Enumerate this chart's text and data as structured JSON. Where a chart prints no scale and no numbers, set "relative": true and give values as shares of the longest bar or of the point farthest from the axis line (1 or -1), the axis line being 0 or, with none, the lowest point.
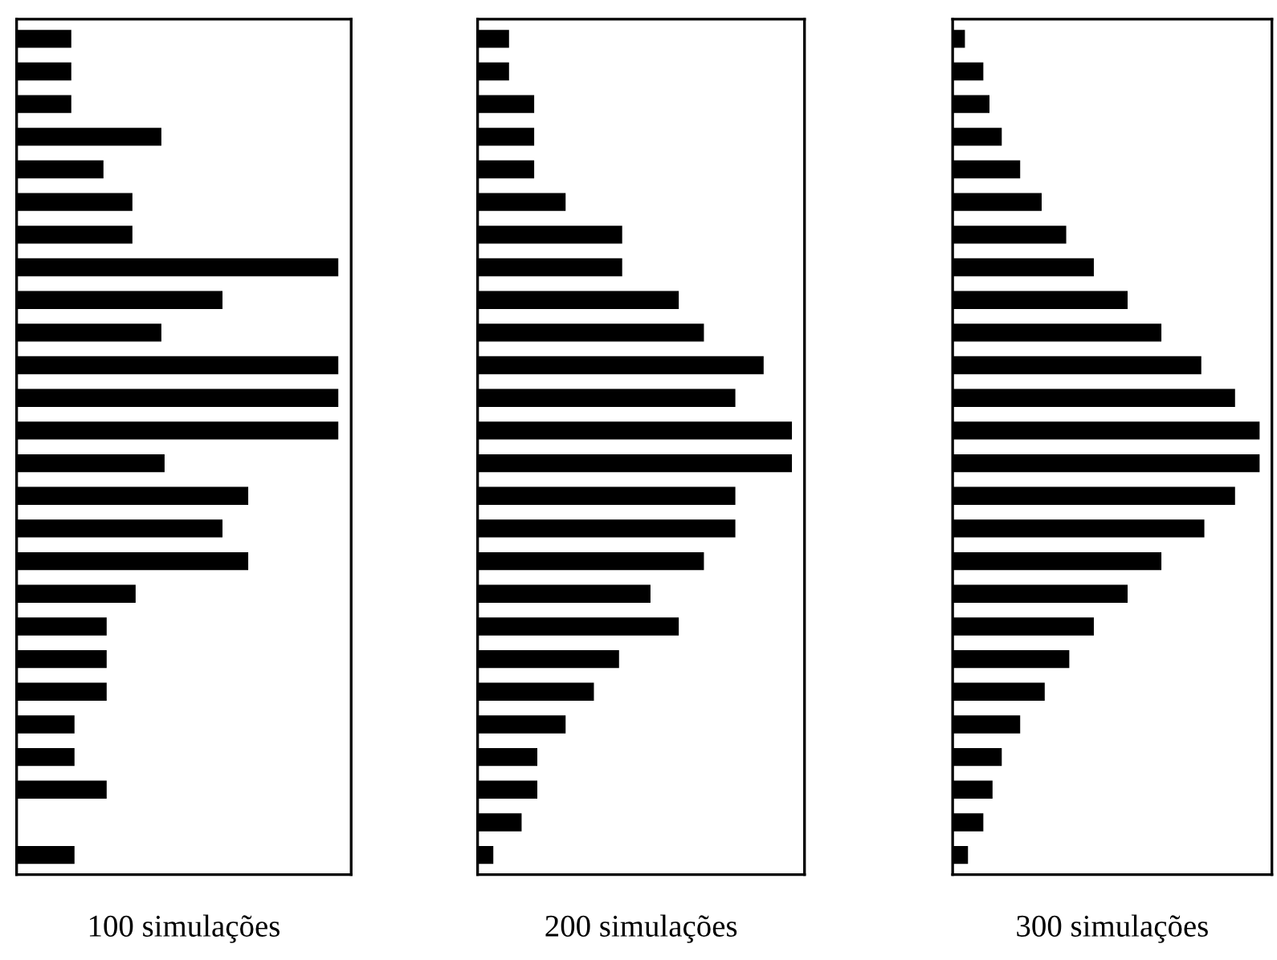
{
  "chart_data": [
    {
      "type": "bar",
      "orientation": "horizontal",
      "relative": true,
      "xlabel": "100 simulações",
      "color": "#000000",
      "categories": [
        null,
        null,
        null,
        null,
        null,
        null,
        null,
        null,
        null,
        null,
        null,
        null,
        null,
        null,
        null,
        null,
        null,
        null,
        null,
        null,
        null,
        null,
        null,
        null,
        null,
        null
      ],
      "values": [
        0.17,
        0.17,
        0.17,
        0.45,
        0.27,
        0.36,
        0.36,
        1,
        0.64,
        0.45,
        1,
        1,
        1,
        0.46,
        0.72,
        0.64,
        0.72,
        0.37,
        0.28,
        0.28,
        0.28,
        0.18,
        0.18,
        0.28,
        0,
        0.18
      ]
    },
    {
      "type": "bar",
      "orientation": "horizontal",
      "relative": true,
      "xlabel": "200 simulações",
      "color": "#000000",
      "categories": [
        null,
        null,
        null,
        null,
        null,
        null,
        null,
        null,
        null,
        null,
        null,
        null,
        null,
        null,
        null,
        null,
        null,
        null,
        null,
        null,
        null,
        null,
        null,
        null,
        null,
        null
      ],
      "values": [
        0.1,
        0.1,
        0.18,
        0.18,
        0.18,
        0.28,
        0.46,
        0.46,
        0.64,
        0.72,
        0.91,
        0.82,
        1,
        1,
        0.82,
        0.82,
        0.72,
        0.55,
        0.64,
        0.45,
        0.37,
        0.28,
        0.19,
        0.19,
        0.14,
        0.05
      ]
    },
    {
      "type": "bar",
      "orientation": "horizontal",
      "relative": true,
      "xlabel": "300 simulações",
      "color": "#000000",
      "categories": [
        null,
        null,
        null,
        null,
        null,
        null,
        null,
        null,
        null,
        null,
        null,
        null,
        null,
        null,
        null,
        null,
        null,
        null,
        null,
        null,
        null,
        null,
        null,
        null,
        null,
        null
      ],
      "values": [
        0.04,
        0.1,
        0.12,
        0.16,
        0.22,
        0.29,
        0.37,
        0.46,
        0.57,
        0.68,
        0.81,
        0.92,
        1,
        1,
        0.92,
        0.82,
        0.68,
        0.57,
        0.46,
        0.38,
        0.3,
        0.22,
        0.16,
        0.13,
        0.1,
        0.05
      ]
    }
  ]
}
